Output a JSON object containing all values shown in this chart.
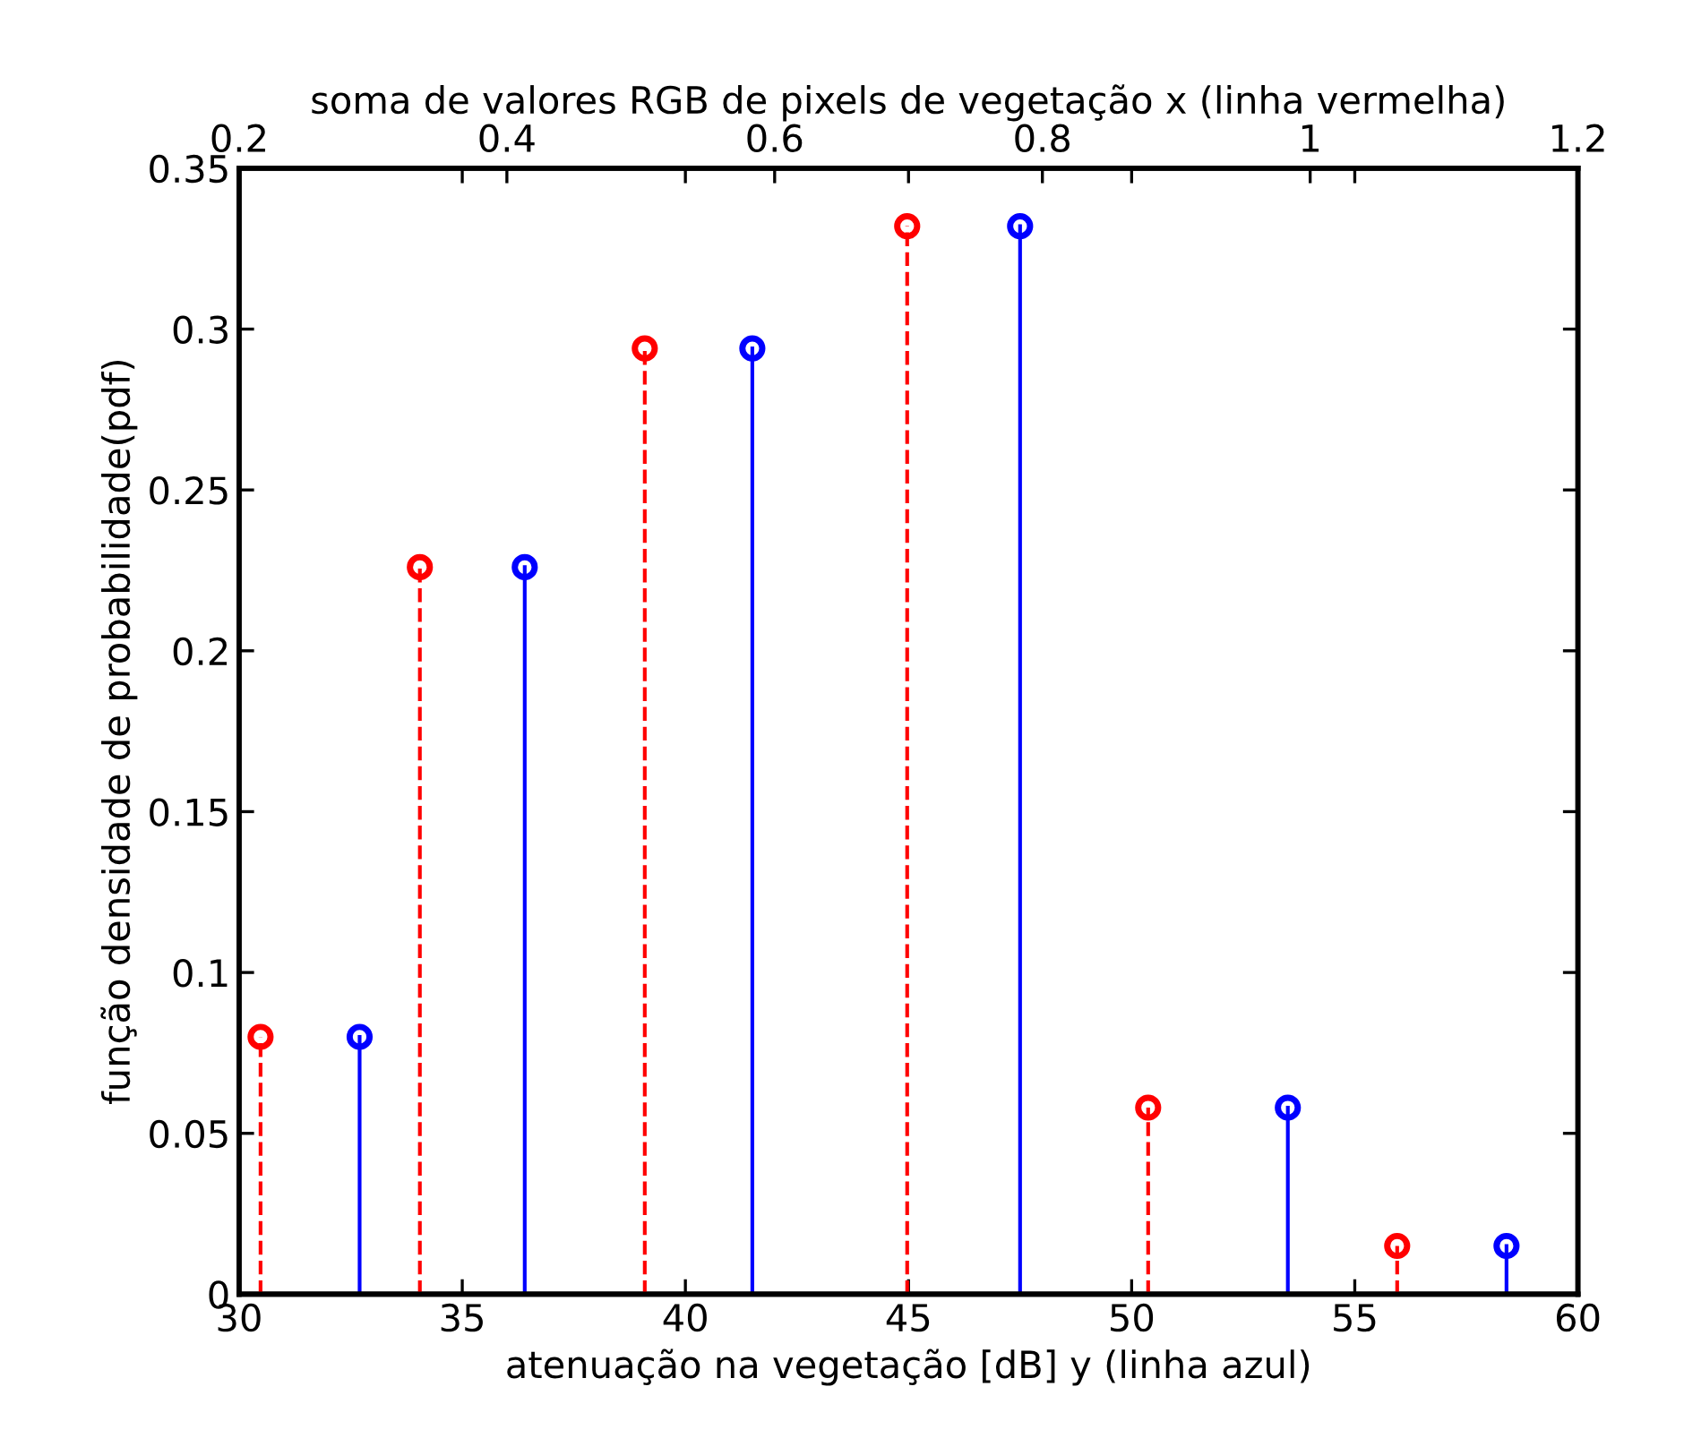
{
  "chart_data": {
    "type": "lollipop",
    "xlabel": "atenuação na vegetação [dB] y (linha azul)",
    "x2label": "soma de valores RGB de pixels de vegetação x (linha vermelha)",
    "ylabel": "função densidade de probabilidade(pdf)",
    "xlim": [
      30,
      60
    ],
    "xticks": [
      30,
      35,
      40,
      45,
      50,
      55,
      60
    ],
    "x2lim": [
      0.2,
      1.2
    ],
    "x2ticks": [
      0.2,
      0.4,
      0.6,
      0.8,
      1,
      1.2
    ],
    "ylim": [
      0,
      0.35
    ],
    "yticks": [
      0,
      0.05,
      0.1,
      0.15,
      0.2,
      0.25,
      0.3,
      0.35
    ],
    "grid": false,
    "marker": "circle",
    "series": [
      {
        "color": "#0000ff",
        "line_style": "solid",
        "x": [
          32.7,
          36.4,
          41.5,
          47.5,
          53.5,
          58.4
        ],
        "values": [
          0.08,
          0.226,
          0.294,
          0.332,
          0.058,
          0.015
        ]
      },
      {
        "color": "#ff0000",
        "line_style": "dashed",
        "axis": "x2",
        "x": [
          0.216,
          0.335,
          0.503,
          0.699,
          0.879,
          1.065
        ],
        "values": [
          0.08,
          0.226,
          0.294,
          0.332,
          0.058,
          0.015
        ]
      }
    ]
  }
}
